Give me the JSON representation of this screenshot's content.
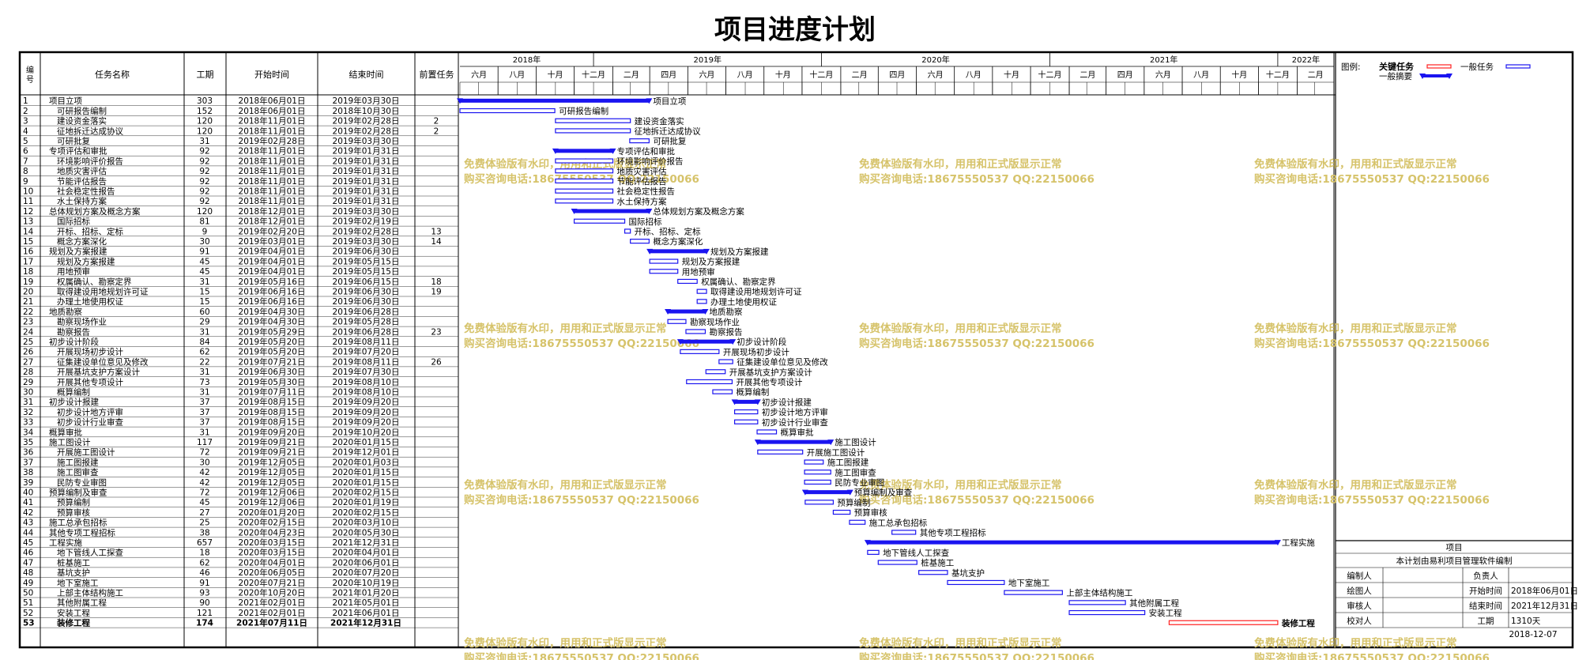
{
  "title": "项目进度计划",
  "table": {
    "headers": {
      "id": "编号",
      "name": "任务名称",
      "duration": "工期",
      "start": "开始时间",
      "end": "结束时间",
      "predecessor": "前置任务"
    }
  },
  "timeline": {
    "years": [
      {
        "label": "2018年",
        "from": "2018-06-01",
        "to": "2018-12-31"
      },
      {
        "label": "2019年",
        "from": "2019-01-01",
        "to": "2019-12-31"
      },
      {
        "label": "2020年",
        "from": "2020-01-01",
        "to": "2020-12-31"
      },
      {
        "label": "2021年",
        "from": "2021-01-01",
        "to": "2021-12-31"
      },
      {
        "label": "2022年",
        "from": "2022-01-01",
        "to": "2022-03-31"
      }
    ],
    "months": [
      {
        "label": "六月",
        "from": "2018-06-01",
        "to": "2018-07-31"
      },
      {
        "label": "八月",
        "from": "2018-08-01",
        "to": "2018-09-30"
      },
      {
        "label": "十月",
        "from": "2018-10-01",
        "to": "2018-11-30"
      },
      {
        "label": "十二月",
        "from": "2018-12-01",
        "to": "2019-01-31"
      },
      {
        "label": "二月",
        "from": "2019-02-01",
        "to": "2019-03-31"
      },
      {
        "label": "四月",
        "from": "2019-04-01",
        "to": "2019-05-31"
      },
      {
        "label": "六月",
        "from": "2019-06-01",
        "to": "2019-07-31"
      },
      {
        "label": "八月",
        "from": "2019-08-01",
        "to": "2019-09-30"
      },
      {
        "label": "十月",
        "from": "2019-10-01",
        "to": "2019-11-30"
      },
      {
        "label": "十二月",
        "from": "2019-12-01",
        "to": "2020-01-31"
      },
      {
        "label": "二月",
        "from": "2020-02-01",
        "to": "2020-03-31"
      },
      {
        "label": "四月",
        "from": "2020-04-01",
        "to": "2020-05-31"
      },
      {
        "label": "六月",
        "from": "2020-06-01",
        "to": "2020-07-31"
      },
      {
        "label": "八月",
        "from": "2020-08-01",
        "to": "2020-09-30"
      },
      {
        "label": "十月",
        "from": "2020-10-01",
        "to": "2020-11-30"
      },
      {
        "label": "十二月",
        "from": "2020-12-01",
        "to": "2021-01-31"
      },
      {
        "label": "二月",
        "from": "2021-02-01",
        "to": "2021-03-31"
      },
      {
        "label": "四月",
        "from": "2021-04-01",
        "to": "2021-05-31"
      },
      {
        "label": "六月",
        "from": "2021-06-01",
        "to": "2021-07-31"
      },
      {
        "label": "八月",
        "from": "2021-08-01",
        "to": "2021-09-30"
      },
      {
        "label": "十月",
        "from": "2021-10-01",
        "to": "2021-11-30"
      },
      {
        "label": "十二月",
        "from": "2021-12-01",
        "to": "2022-01-31"
      },
      {
        "label": "二月",
        "from": "2022-02-01",
        "to": "2022-03-31"
      }
    ]
  },
  "legend": {
    "label": "图例:",
    "critical": "关键任务",
    "normal": "一般任务",
    "summary": "一般摘要"
  },
  "info": {
    "title": "项目",
    "subtitle": "本计划由易利项目管理软件编制",
    "rows": [
      [
        "编制人",
        "",
        "负责人",
        ""
      ],
      [
        "绘图人",
        "",
        "开始时间",
        "2018年06月01日"
      ],
      [
        "审核人",
        "",
        "结束时间",
        "2021年12月31日"
      ],
      [
        "校对人",
        "",
        "工期",
        "1310天"
      ]
    ],
    "date": "2018-12-07"
  },
  "watermark": {
    "line1": "免费体验版有水印，用用和正式版显示正常",
    "line2": "购买咨询电话:18675550537 QQ:22150066"
  },
  "colors": {
    "bar": "#1a14f0",
    "critical": "#ff2020",
    "watermark": "#d6c36a"
  },
  "chart_data": {
    "type": "gantt",
    "tasks": [
      {
        "id": "1",
        "name": "项目立项",
        "level": 0,
        "summary": true,
        "duration": "303",
        "start": "2018年06月01日",
        "end": "2019年03月30日",
        "pred": "",
        "s": "2018-06-01",
        "e": "2019-03-30"
      },
      {
        "id": "2",
        "name": "可研报告编制",
        "level": 1,
        "summary": false,
        "duration": "152",
        "start": "2018年06月01日",
        "end": "2018年10月30日",
        "pred": "",
        "s": "2018-06-01",
        "e": "2018-10-30"
      },
      {
        "id": "3",
        "name": "建设资金落实",
        "level": 1,
        "summary": false,
        "duration": "120",
        "start": "2018年11月01日",
        "end": "2019年02月28日",
        "pred": "2",
        "s": "2018-11-01",
        "e": "2019-02-28"
      },
      {
        "id": "4",
        "name": "征地拆迁达成协议",
        "level": 1,
        "summary": false,
        "duration": "120",
        "start": "2018年11月01日",
        "end": "2019年02月28日",
        "pred": "2",
        "s": "2018-11-01",
        "e": "2019-02-28"
      },
      {
        "id": "5",
        "name": "可研批复",
        "level": 1,
        "summary": false,
        "duration": "31",
        "start": "2019年02月28日",
        "end": "2019年03月30日",
        "pred": "",
        "s": "2019-02-28",
        "e": "2019-03-30"
      },
      {
        "id": "6",
        "name": "专项评估和审批",
        "level": 0,
        "summary": true,
        "duration": "92",
        "start": "2018年11月01日",
        "end": "2019年01月31日",
        "pred": "",
        "s": "2018-11-01",
        "e": "2019-01-31"
      },
      {
        "id": "7",
        "name": "环境影响评价报告",
        "level": 1,
        "summary": false,
        "duration": "92",
        "start": "2018年11月01日",
        "end": "2019年01月31日",
        "pred": "",
        "s": "2018-11-01",
        "e": "2019-01-31"
      },
      {
        "id": "8",
        "name": "地质灾害评估",
        "level": 1,
        "summary": false,
        "duration": "92",
        "start": "2018年11月01日",
        "end": "2019年01月31日",
        "pred": "",
        "s": "2018-11-01",
        "e": "2019-01-31"
      },
      {
        "id": "9",
        "name": "节能评估报告",
        "level": 1,
        "summary": false,
        "duration": "92",
        "start": "2018年11月01日",
        "end": "2019年01月31日",
        "pred": "",
        "s": "2018-11-01",
        "e": "2019-01-31"
      },
      {
        "id": "10",
        "name": "社会稳定性报告",
        "level": 1,
        "summary": false,
        "duration": "92",
        "start": "2018年11月01日",
        "end": "2019年01月31日",
        "pred": "",
        "s": "2018-11-01",
        "e": "2019-01-31"
      },
      {
        "id": "11",
        "name": "水土保持方案",
        "level": 1,
        "summary": false,
        "duration": "92",
        "start": "2018年11月01日",
        "end": "2019年01月31日",
        "pred": "",
        "s": "2018-11-01",
        "e": "2019-01-31"
      },
      {
        "id": "12",
        "name": "总体规划方案及概念方案",
        "level": 0,
        "summary": true,
        "duration": "120",
        "start": "2018年12月01日",
        "end": "2019年03月30日",
        "pred": "",
        "s": "2018-12-01",
        "e": "2019-03-30"
      },
      {
        "id": "13",
        "name": "国际招标",
        "level": 1,
        "summary": false,
        "duration": "81",
        "start": "2018年12月01日",
        "end": "2019年02月19日",
        "pred": "",
        "s": "2018-12-01",
        "e": "2019-02-19"
      },
      {
        "id": "14",
        "name": "开标、招标、定标",
        "level": 1,
        "summary": false,
        "duration": "9",
        "start": "2019年02月20日",
        "end": "2019年02月28日",
        "pred": "13",
        "s": "2019-02-20",
        "e": "2019-02-28"
      },
      {
        "id": "15",
        "name": "概念方案深化",
        "level": 1,
        "summary": false,
        "duration": "30",
        "start": "2019年03月01日",
        "end": "2019年03月30日",
        "pred": "14",
        "s": "2019-03-01",
        "e": "2019-03-30"
      },
      {
        "id": "16",
        "name": "规划及方案报建",
        "level": 0,
        "summary": true,
        "duration": "91",
        "start": "2019年04月01日",
        "end": "2019年06月30日",
        "pred": "",
        "s": "2019-04-01",
        "e": "2019-06-30"
      },
      {
        "id": "17",
        "name": "规划及方案报建",
        "level": 1,
        "summary": false,
        "duration": "45",
        "start": "2019年04月01日",
        "end": "2019年05月15日",
        "pred": "",
        "s": "2019-04-01",
        "e": "2019-05-15"
      },
      {
        "id": "18",
        "name": "用地预审",
        "level": 1,
        "summary": false,
        "duration": "45",
        "start": "2019年04月01日",
        "end": "2019年05月15日",
        "pred": "",
        "s": "2019-04-01",
        "e": "2019-05-15"
      },
      {
        "id": "19",
        "name": "权属确认、勘察定界",
        "level": 1,
        "summary": false,
        "duration": "31",
        "start": "2019年05月16日",
        "end": "2019年06月15日",
        "pred": "18",
        "s": "2019-05-16",
        "e": "2019-06-15"
      },
      {
        "id": "20",
        "name": "取得建设用地规划许可证",
        "level": 1,
        "summary": false,
        "duration": "15",
        "start": "2019年06月16日",
        "end": "2019年06月30日",
        "pred": "19",
        "s": "2019-06-16",
        "e": "2019-06-30"
      },
      {
        "id": "21",
        "name": "办理土地使用权证",
        "level": 1,
        "summary": false,
        "duration": "15",
        "start": "2019年06月16日",
        "end": "2019年06月30日",
        "pred": "",
        "s": "2019-06-16",
        "e": "2019-06-30"
      },
      {
        "id": "22",
        "name": "地质勘察",
        "level": 0,
        "summary": true,
        "duration": "60",
        "start": "2019年04月30日",
        "end": "2019年06月28日",
        "pred": "",
        "s": "2019-04-30",
        "e": "2019-06-28"
      },
      {
        "id": "23",
        "name": "勘察现场作业",
        "level": 1,
        "summary": false,
        "duration": "29",
        "start": "2019年04月30日",
        "end": "2019年05月28日",
        "pred": "",
        "s": "2019-04-30",
        "e": "2019-05-28"
      },
      {
        "id": "24",
        "name": "勘察报告",
        "level": 1,
        "summary": false,
        "duration": "31",
        "start": "2019年05月29日",
        "end": "2019年06月28日",
        "pred": "23",
        "s": "2019-05-29",
        "e": "2019-06-28"
      },
      {
        "id": "25",
        "name": "初步设计阶段",
        "level": 0,
        "summary": true,
        "duration": "84",
        "start": "2019年05月20日",
        "end": "2019年08月11日",
        "pred": "",
        "s": "2019-05-20",
        "e": "2019-08-11"
      },
      {
        "id": "26",
        "name": "开展现场初步设计",
        "level": 1,
        "summary": false,
        "duration": "62",
        "start": "2019年05月20日",
        "end": "2019年07月20日",
        "pred": "",
        "s": "2019-05-20",
        "e": "2019-07-20"
      },
      {
        "id": "27",
        "name": "征集建设单位意见及修改",
        "level": 1,
        "summary": false,
        "duration": "22",
        "start": "2019年07月21日",
        "end": "2019年08月11日",
        "pred": "26",
        "s": "2019-07-21",
        "e": "2019-08-11"
      },
      {
        "id": "28",
        "name": "开展基坑支护方案设计",
        "level": 1,
        "summary": false,
        "duration": "31",
        "start": "2019年06月30日",
        "end": "2019年07月30日",
        "pred": "",
        "s": "2019-06-30",
        "e": "2019-07-30"
      },
      {
        "id": "29",
        "name": "开展其他专项设计",
        "level": 1,
        "summary": false,
        "duration": "73",
        "start": "2019年05月30日",
        "end": "2019年08月10日",
        "pred": "",
        "s": "2019-05-30",
        "e": "2019-08-10"
      },
      {
        "id": "30",
        "name": "概算编制",
        "level": 1,
        "summary": false,
        "duration": "31",
        "start": "2019年07月11日",
        "end": "2019年08月10日",
        "pred": "",
        "s": "2019-07-11",
        "e": "2019-08-10"
      },
      {
        "id": "31",
        "name": "初步设计报建",
        "level": 0,
        "summary": true,
        "duration": "37",
        "start": "2019年08月15日",
        "end": "2019年09月20日",
        "pred": "",
        "s": "2019-08-15",
        "e": "2019-09-20"
      },
      {
        "id": "32",
        "name": "初步设计地方评审",
        "level": 1,
        "summary": false,
        "duration": "37",
        "start": "2019年08月15日",
        "end": "2019年09月20日",
        "pred": "",
        "s": "2019-08-15",
        "e": "2019-09-20"
      },
      {
        "id": "33",
        "name": "初步设计行业审查",
        "level": 1,
        "summary": false,
        "duration": "37",
        "start": "2019年08月15日",
        "end": "2019年09月20日",
        "pred": "",
        "s": "2019-08-15",
        "e": "2019-09-20"
      },
      {
        "id": "34",
        "name": "概算审批",
        "level": 0,
        "summary": false,
        "duration": "31",
        "start": "2019年09月20日",
        "end": "2019年10月20日",
        "pred": "",
        "s": "2019-09-20",
        "e": "2019-10-20"
      },
      {
        "id": "35",
        "name": "施工图设计",
        "level": 0,
        "summary": true,
        "duration": "117",
        "start": "2019年09月21日",
        "end": "2020年01月15日",
        "pred": "",
        "s": "2019-09-21",
        "e": "2020-01-15"
      },
      {
        "id": "36",
        "name": "开展施工图设计",
        "level": 1,
        "summary": false,
        "duration": "72",
        "start": "2019年09月21日",
        "end": "2019年12月01日",
        "pred": "",
        "s": "2019-09-21",
        "e": "2019-12-01"
      },
      {
        "id": "37",
        "name": "施工图报建",
        "level": 1,
        "summary": false,
        "duration": "30",
        "start": "2019年12月05日",
        "end": "2020年01月03日",
        "pred": "",
        "s": "2019-12-05",
        "e": "2020-01-03"
      },
      {
        "id": "38",
        "name": "施工图审查",
        "level": 1,
        "summary": false,
        "duration": "42",
        "start": "2019年12月05日",
        "end": "2020年01月15日",
        "pred": "",
        "s": "2019-12-05",
        "e": "2020-01-15"
      },
      {
        "id": "39",
        "name": "民防专业审图",
        "level": 1,
        "summary": false,
        "duration": "42",
        "start": "2019年12月05日",
        "end": "2020年01月15日",
        "pred": "",
        "s": "2019-12-05",
        "e": "2020-01-15"
      },
      {
        "id": "40",
        "name": "预算编制及审查",
        "level": 0,
        "summary": true,
        "duration": "72",
        "start": "2019年12月06日",
        "end": "2020年02月15日",
        "pred": "",
        "s": "2019-12-06",
        "e": "2020-02-15"
      },
      {
        "id": "41",
        "name": "预算编制",
        "level": 1,
        "summary": false,
        "duration": "45",
        "start": "2019年12月06日",
        "end": "2020年01月19日",
        "pred": "",
        "s": "2019-12-06",
        "e": "2020-01-19"
      },
      {
        "id": "42",
        "name": "预算审核",
        "level": 1,
        "summary": false,
        "duration": "27",
        "start": "2020年01月20日",
        "end": "2020年02月15日",
        "pred": "",
        "s": "2020-01-20",
        "e": "2020-02-15"
      },
      {
        "id": "43",
        "name": "施工总承包招标",
        "level": 0,
        "summary": false,
        "duration": "25",
        "start": "2020年02月15日",
        "end": "2020年03月10日",
        "pred": "",
        "s": "2020-02-15",
        "e": "2020-03-10"
      },
      {
        "id": "44",
        "name": "其他专项工程招标",
        "level": 0,
        "summary": false,
        "duration": "38",
        "start": "2020年04月23日",
        "end": "2020年05月30日",
        "pred": "",
        "s": "2020-04-23",
        "e": "2020-05-30"
      },
      {
        "id": "45",
        "name": "工程实施",
        "level": 0,
        "summary": true,
        "duration": "657",
        "start": "2020年03月15日",
        "end": "2021年12月31日",
        "pred": "",
        "s": "2020-03-15",
        "e": "2021-12-31"
      },
      {
        "id": "46",
        "name": "地下管线人工探查",
        "level": 1,
        "summary": false,
        "duration": "18",
        "start": "2020年03月15日",
        "end": "2020年04月01日",
        "pred": "",
        "s": "2020-03-15",
        "e": "2020-04-01"
      },
      {
        "id": "47",
        "name": "桩基施工",
        "level": 1,
        "summary": false,
        "duration": "62",
        "start": "2020年04月01日",
        "end": "2020年06月01日",
        "pred": "",
        "s": "2020-04-01",
        "e": "2020-06-01"
      },
      {
        "id": "48",
        "name": "基坑支护",
        "level": 1,
        "summary": false,
        "duration": "46",
        "start": "2020年06月05日",
        "end": "2020年07月20日",
        "pred": "",
        "s": "2020-06-05",
        "e": "2020-07-20"
      },
      {
        "id": "49",
        "name": "地下室施工",
        "level": 1,
        "summary": false,
        "duration": "91",
        "start": "2020年07月21日",
        "end": "2020年10月19日",
        "pred": "",
        "s": "2020-07-21",
        "e": "2020-10-19"
      },
      {
        "id": "50",
        "name": "上部主体结构施工",
        "level": 1,
        "summary": false,
        "duration": "93",
        "start": "2020年10月20日",
        "end": "2021年01月20日",
        "pred": "",
        "s": "2020-10-20",
        "e": "2021-01-20"
      },
      {
        "id": "51",
        "name": "其他附属工程",
        "level": 1,
        "summary": false,
        "duration": "90",
        "start": "2021年02月01日",
        "end": "2021年05月01日",
        "pred": "",
        "s": "2021-02-01",
        "e": "2021-05-01"
      },
      {
        "id": "52",
        "name": "安装工程",
        "level": 1,
        "summary": false,
        "duration": "121",
        "start": "2021年02月01日",
        "end": "2021年06月01日",
        "pred": "",
        "s": "2021-02-01",
        "e": "2021-06-01"
      },
      {
        "id": "53",
        "name": "装修工程",
        "level": 1,
        "summary": false,
        "critical": true,
        "duration": "174",
        "start": "2021年07月11日",
        "end": "2021年12月31日",
        "pred": "",
        "s": "2021-07-11",
        "e": "2021-12-31"
      }
    ]
  }
}
